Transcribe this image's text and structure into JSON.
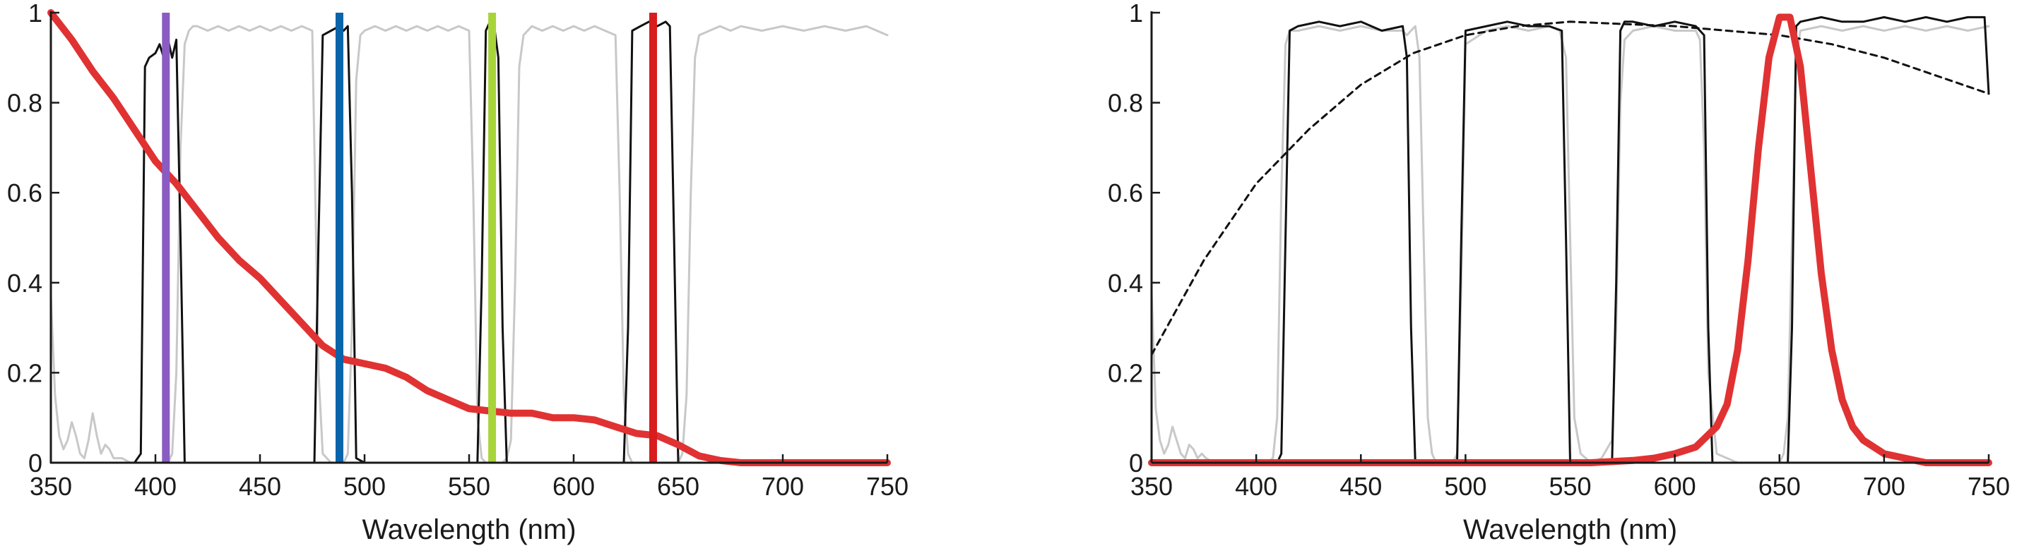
{
  "chart_data": [
    {
      "type": "line",
      "title": "",
      "xlabel": "Wavelength (nm)",
      "ylabel": "",
      "xlim": [
        350,
        750
      ],
      "ylim": [
        0,
        1
      ],
      "x_ticks": [
        350,
        400,
        450,
        500,
        550,
        600,
        650,
        700,
        750
      ],
      "y_ticks": [
        0,
        0.2,
        0.4,
        0.6,
        0.8,
        1
      ],
      "y_tick_labels": [
        "0",
        "0.2",
        "0.4",
        "0.6",
        "0.8",
        "1"
      ],
      "grid": false,
      "series": [
        {
          "style": "gray-thin",
          "color": "#c8c8c8",
          "x": [
            350,
            352,
            354,
            356,
            358,
            360,
            362,
            364,
            366,
            368,
            370,
            372,
            374,
            376,
            378,
            380,
            384,
            388,
            392,
            396,
            400,
            404,
            406,
            408,
            410,
            412,
            414,
            416,
            418,
            420,
            425,
            430,
            435,
            440,
            445,
            450,
            455,
            460,
            465,
            470,
            475,
            476,
            478,
            480,
            482,
            484,
            486,
            488,
            490,
            492,
            494,
            496,
            498,
            500,
            505,
            510,
            515,
            520,
            525,
            530,
            535,
            540,
            545,
            550,
            552,
            554,
            556,
            558,
            560,
            562,
            564,
            566,
            568,
            570,
            572,
            574,
            576,
            578,
            580,
            585,
            590,
            595,
            600,
            605,
            610,
            615,
            620,
            622,
            624,
            626,
            628,
            630,
            632,
            634,
            636,
            638,
            640,
            642,
            644,
            646,
            648,
            650,
            652,
            654,
            656,
            658,
            660,
            665,
            670,
            675,
            680,
            690,
            700,
            710,
            720,
            730,
            740,
            750
          ],
          "y": [
            0.37,
            0.15,
            0.06,
            0.03,
            0.05,
            0.09,
            0.06,
            0.02,
            0.01,
            0.05,
            0.11,
            0.06,
            0.02,
            0.04,
            0.03,
            0.01,
            0.01,
            0.0,
            0.0,
            0.0,
            0.0,
            0.0,
            0.0,
            0.02,
            0.2,
            0.7,
            0.93,
            0.96,
            0.97,
            0.97,
            0.96,
            0.97,
            0.96,
            0.97,
            0.96,
            0.97,
            0.96,
            0.97,
            0.96,
            0.97,
            0.96,
            0.7,
            0.2,
            0.02,
            0.01,
            0.0,
            0.0,
            0.0,
            0.0,
            0.02,
            0.3,
            0.85,
            0.95,
            0.96,
            0.97,
            0.96,
            0.97,
            0.96,
            0.97,
            0.96,
            0.97,
            0.96,
            0.97,
            0.96,
            0.6,
            0.1,
            0.01,
            0.0,
            0.0,
            0.0,
            0.0,
            0.0,
            0.01,
            0.05,
            0.4,
            0.88,
            0.95,
            0.96,
            0.97,
            0.96,
            0.97,
            0.96,
            0.97,
            0.96,
            0.97,
            0.96,
            0.95,
            0.6,
            0.15,
            0.02,
            0.0,
            0.0,
            0.0,
            0.0,
            0.0,
            0.0,
            0.0,
            0.0,
            0.0,
            0.0,
            0.0,
            0.0,
            0.02,
            0.15,
            0.6,
            0.9,
            0.95,
            0.96,
            0.97,
            0.96,
            0.97,
            0.96,
            0.97,
            0.96,
            0.97,
            0.96,
            0.97,
            0.95
          ]
        },
        {
          "style": "black-thin",
          "color": "#111111",
          "x": [
            350,
            390,
            393,
            395,
            397,
            400,
            402,
            404,
            406,
            408,
            410,
            412,
            414,
            420,
            470,
            476,
            478,
            480,
            484,
            488,
            490,
            492,
            494,
            496,
            500,
            550,
            554,
            556,
            558,
            560,
            562,
            564,
            566,
            568,
            572,
            620,
            624,
            626,
            628,
            632,
            636,
            640,
            644,
            646,
            648,
            650,
            654,
            700,
            750
          ],
          "y": [
            0.0,
            0.0,
            0.02,
            0.88,
            0.9,
            0.91,
            0.93,
            0.9,
            0.94,
            0.9,
            0.94,
            0.5,
            0.0,
            0.0,
            0.0,
            0.0,
            0.5,
            0.95,
            0.96,
            0.97,
            0.96,
            0.97,
            0.6,
            0.01,
            0.0,
            0.0,
            0.0,
            0.4,
            0.96,
            0.98,
            0.97,
            0.9,
            0.3,
            0.0,
            0.0,
            0.0,
            0.0,
            0.3,
            0.96,
            0.97,
            0.98,
            0.97,
            0.98,
            0.97,
            0.5,
            0.0,
            0.0,
            0.0,
            0.0
          ]
        },
        {
          "style": "red-thick",
          "color": "#e03232",
          "x": [
            350,
            360,
            370,
            380,
            390,
            400,
            410,
            420,
            430,
            440,
            450,
            460,
            470,
            480,
            490,
            500,
            510,
            520,
            530,
            540,
            550,
            560,
            570,
            580,
            590,
            600,
            610,
            620,
            630,
            640,
            650,
            660,
            670,
            680,
            690,
            700,
            720,
            750
          ],
          "y": [
            1.0,
            0.94,
            0.87,
            0.81,
            0.74,
            0.67,
            0.62,
            0.56,
            0.5,
            0.45,
            0.41,
            0.36,
            0.31,
            0.26,
            0.23,
            0.22,
            0.21,
            0.19,
            0.16,
            0.14,
            0.12,
            0.115,
            0.11,
            0.11,
            0.1,
            0.1,
            0.095,
            0.08,
            0.065,
            0.06,
            0.04,
            0.015,
            0.005,
            0.0,
            0.0,
            0.0,
            0.0,
            0.0
          ]
        }
      ],
      "bars": [
        {
          "x": 405,
          "color": "#8a5cc2"
        },
        {
          "x": 488,
          "color": "#0a64aa"
        },
        {
          "x": 561,
          "color": "#a8d43a"
        },
        {
          "x": 638,
          "color": "#d71d1d"
        }
      ]
    },
    {
      "type": "line",
      "title": "",
      "xlabel": "Wavelength (nm)",
      "ylabel": "",
      "xlim": [
        350,
        750
      ],
      "ylim": [
        0,
        1
      ],
      "x_ticks": [
        350,
        400,
        450,
        500,
        550,
        600,
        650,
        700,
        750
      ],
      "y_ticks": [
        0,
        0.2,
        0.4,
        0.6,
        0.8,
        1
      ],
      "y_tick_labels": [
        "0",
        "0.2",
        "0.4",
        "0.6",
        "0.8",
        "1"
      ],
      "grid": false,
      "series": [
        {
          "style": "gray-thin",
          "color": "#c8c8c8",
          "x": [
            350,
            352,
            354,
            356,
            358,
            360,
            362,
            364,
            366,
            368,
            370,
            372,
            374,
            376,
            380,
            390,
            400,
            405,
            408,
            410,
            412,
            414,
            416,
            420,
            430,
            440,
            450,
            460,
            470,
            472,
            474,
            476,
            478,
            480,
            482,
            484,
            486,
            490,
            494,
            496,
            498,
            500,
            510,
            520,
            530,
            540,
            545,
            548,
            550,
            552,
            555,
            560,
            565,
            570,
            572,
            574,
            576,
            580,
            590,
            600,
            610,
            612,
            614,
            616,
            620,
            630,
            640,
            642,
            644,
            646,
            648,
            650,
            652,
            654,
            656,
            658,
            660,
            670,
            680,
            690,
            700,
            710,
            720,
            730,
            740,
            750
          ],
          "y": [
            0.38,
            0.12,
            0.05,
            0.02,
            0.04,
            0.08,
            0.05,
            0.02,
            0.01,
            0.04,
            0.03,
            0.01,
            0.02,
            0.01,
            0.0,
            0.0,
            0.0,
            0.0,
            0.01,
            0.1,
            0.6,
            0.93,
            0.96,
            0.96,
            0.97,
            0.96,
            0.97,
            0.96,
            0.96,
            0.95,
            0.96,
            0.97,
            0.9,
            0.5,
            0.1,
            0.02,
            0.0,
            0.0,
            0.0,
            0.02,
            0.4,
            0.93,
            0.96,
            0.97,
            0.96,
            0.97,
            0.96,
            0.9,
            0.5,
            0.1,
            0.02,
            0.0,
            0.01,
            0.05,
            0.3,
            0.8,
            0.94,
            0.96,
            0.97,
            0.96,
            0.96,
            0.94,
            0.7,
            0.2,
            0.02,
            0.0,
            0.0,
            0.0,
            0.0,
            0.0,
            0.0,
            0.0,
            0.02,
            0.1,
            0.5,
            0.9,
            0.96,
            0.97,
            0.96,
            0.97,
            0.96,
            0.97,
            0.96,
            0.97,
            0.96,
            0.97
          ]
        },
        {
          "style": "black-thin",
          "color": "#111111",
          "x": [
            350,
            400,
            410,
            412,
            414,
            416,
            420,
            430,
            440,
            450,
            460,
            470,
            472,
            474,
            476,
            480,
            490,
            496,
            498,
            500,
            510,
            520,
            530,
            540,
            546,
            548,
            550,
            560,
            570,
            572,
            574,
            576,
            580,
            590,
            600,
            610,
            614,
            616,
            618,
            620,
            630,
            640,
            650,
            654,
            656,
            658,
            660,
            670,
            680,
            690,
            700,
            710,
            720,
            730,
            740,
            748,
            750
          ],
          "y": [
            0.0,
            0.0,
            0.0,
            0.02,
            0.5,
            0.96,
            0.97,
            0.98,
            0.97,
            0.98,
            0.96,
            0.97,
            0.9,
            0.3,
            0.0,
            0.0,
            0.0,
            0.0,
            0.5,
            0.96,
            0.97,
            0.98,
            0.97,
            0.97,
            0.96,
            0.5,
            0.0,
            0.0,
            0.0,
            0.4,
            0.96,
            0.98,
            0.98,
            0.97,
            0.98,
            0.97,
            0.95,
            0.3,
            0.0,
            0.0,
            0.0,
            0.0,
            0.0,
            0.0,
            0.3,
            0.97,
            0.98,
            0.99,
            0.98,
            0.98,
            0.99,
            0.98,
            0.99,
            0.98,
            0.99,
            0.99,
            0.82
          ]
        },
        {
          "style": "black-dashed",
          "color": "#111111",
          "x": [
            350,
            375,
            400,
            425,
            450,
            475,
            500,
            525,
            550,
            575,
            600,
            625,
            650,
            675,
            700,
            725,
            750
          ],
          "y": [
            0.24,
            0.45,
            0.62,
            0.74,
            0.84,
            0.91,
            0.95,
            0.97,
            0.98,
            0.975,
            0.97,
            0.96,
            0.95,
            0.93,
            0.9,
            0.86,
            0.82
          ]
        },
        {
          "style": "red-thick",
          "color": "#e03232",
          "x": [
            350,
            400,
            500,
            560,
            580,
            590,
            600,
            610,
            620,
            625,
            630,
            635,
            640,
            645,
            650,
            655,
            660,
            665,
            670,
            675,
            680,
            685,
            690,
            700,
            710,
            720,
            750
          ],
          "y": [
            0.0,
            0.0,
            0.0,
            0.0,
            0.005,
            0.01,
            0.02,
            0.035,
            0.08,
            0.13,
            0.25,
            0.45,
            0.7,
            0.9,
            0.99,
            0.99,
            0.88,
            0.65,
            0.42,
            0.25,
            0.14,
            0.08,
            0.05,
            0.02,
            0.01,
            0.0,
            0.0
          ]
        }
      ],
      "bars": []
    }
  ]
}
